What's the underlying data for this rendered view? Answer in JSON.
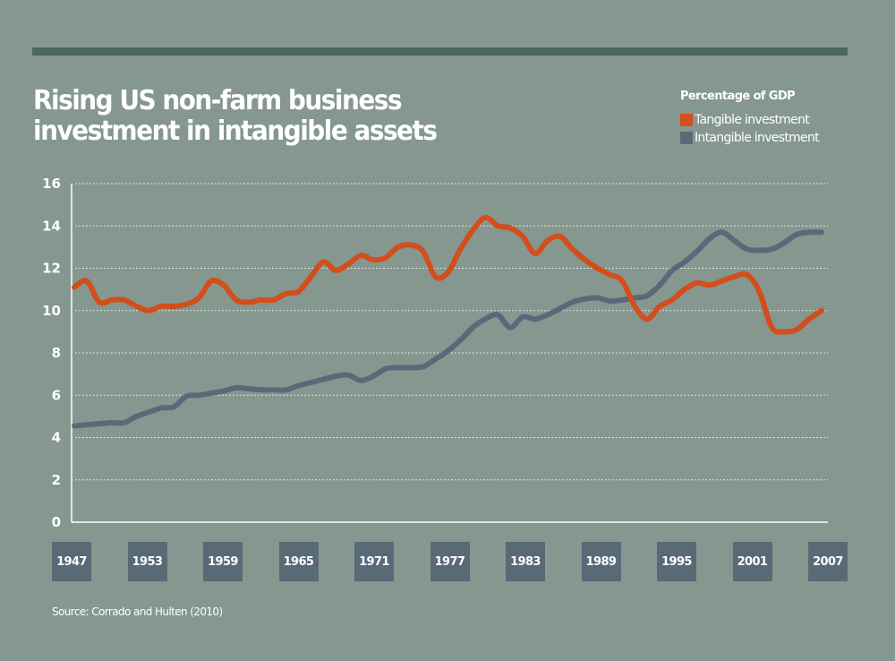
{
  "header": {
    "title_line1": "Rising US non-farm business",
    "title_line2": "investment in intangible assets"
  },
  "legend": {
    "title": "Percentage of GDP",
    "items": [
      {
        "label": "Tangible investment",
        "color": "#d24e1c"
      },
      {
        "label": "Intangible investment",
        "color": "#586a7a"
      }
    ]
  },
  "source": "Source: Corrado and Hulten (2010)",
  "colors": {
    "background": "#85978f",
    "top_bar": "#4b6860",
    "year_box": "#586a76",
    "gridline": "#dfe6e2"
  },
  "chart_data": {
    "type": "line",
    "title": "Rising US non-farm business investment in intangible assets",
    "ylabel": "Percentage of GDP",
    "xlabel": "",
    "ylim": [
      0,
      16
    ],
    "xlim": [
      1947,
      2007
    ],
    "yticks": [
      "0",
      "2",
      "4",
      "6",
      "8",
      "10",
      "12",
      "14",
      "16"
    ],
    "ytick_values": [
      0,
      2,
      4,
      6,
      8,
      10,
      12,
      14,
      16
    ],
    "xticks": [
      "1947",
      "1953",
      "1959",
      "1965",
      "1971",
      "1977",
      "1983",
      "1989",
      "1995",
      "2001",
      "2007"
    ],
    "grid": "horizontal dotted",
    "legend_position": "top-right",
    "x_start": 1947,
    "series": [
      {
        "name": "Tangible investment",
        "color": "#d24e1c",
        "values": [
          11.1,
          11.4,
          10.4,
          10.5,
          10.5,
          10.2,
          10.0,
          10.2,
          10.2,
          10.3,
          10.6,
          11.4,
          11.2,
          10.5,
          10.4,
          10.5,
          10.5,
          10.8,
          10.9,
          11.6,
          12.3,
          11.9,
          12.2,
          12.6,
          12.4,
          12.5,
          13.0,
          13.1,
          12.8,
          11.6,
          11.8,
          12.9,
          13.8,
          14.4,
          14.0,
          13.9,
          13.5,
          12.7,
          13.3,
          13.5,
          12.9,
          12.4,
          12.0,
          11.7,
          11.4,
          10.2,
          9.6,
          10.2,
          10.5,
          11.0,
          11.3,
          11.2,
          11.4,
          11.6,
          11.7,
          10.9,
          9.2,
          9.0,
          9.1,
          9.6,
          10.0
        ]
      },
      {
        "name": "Intangible investment",
        "color": "#586a7a",
        "values": [
          4.55,
          4.6,
          4.65,
          4.7,
          4.7,
          5.0,
          5.2,
          5.4,
          5.45,
          5.95,
          6.0,
          6.1,
          6.2,
          6.35,
          6.3,
          6.25,
          6.25,
          6.25,
          6.45,
          6.6,
          6.75,
          6.9,
          6.95,
          6.7,
          6.9,
          7.25,
          7.3,
          7.3,
          7.35,
          7.7,
          8.1,
          8.6,
          9.2,
          9.6,
          9.8,
          9.2,
          9.7,
          9.6,
          9.8,
          10.1,
          10.4,
          10.55,
          10.6,
          10.45,
          10.5,
          10.6,
          10.7,
          11.2,
          11.9,
          12.3,
          12.8,
          13.4,
          13.7,
          13.3,
          12.9,
          12.85,
          12.9,
          13.2,
          13.6,
          13.7,
          13.7
        ]
      }
    ]
  }
}
